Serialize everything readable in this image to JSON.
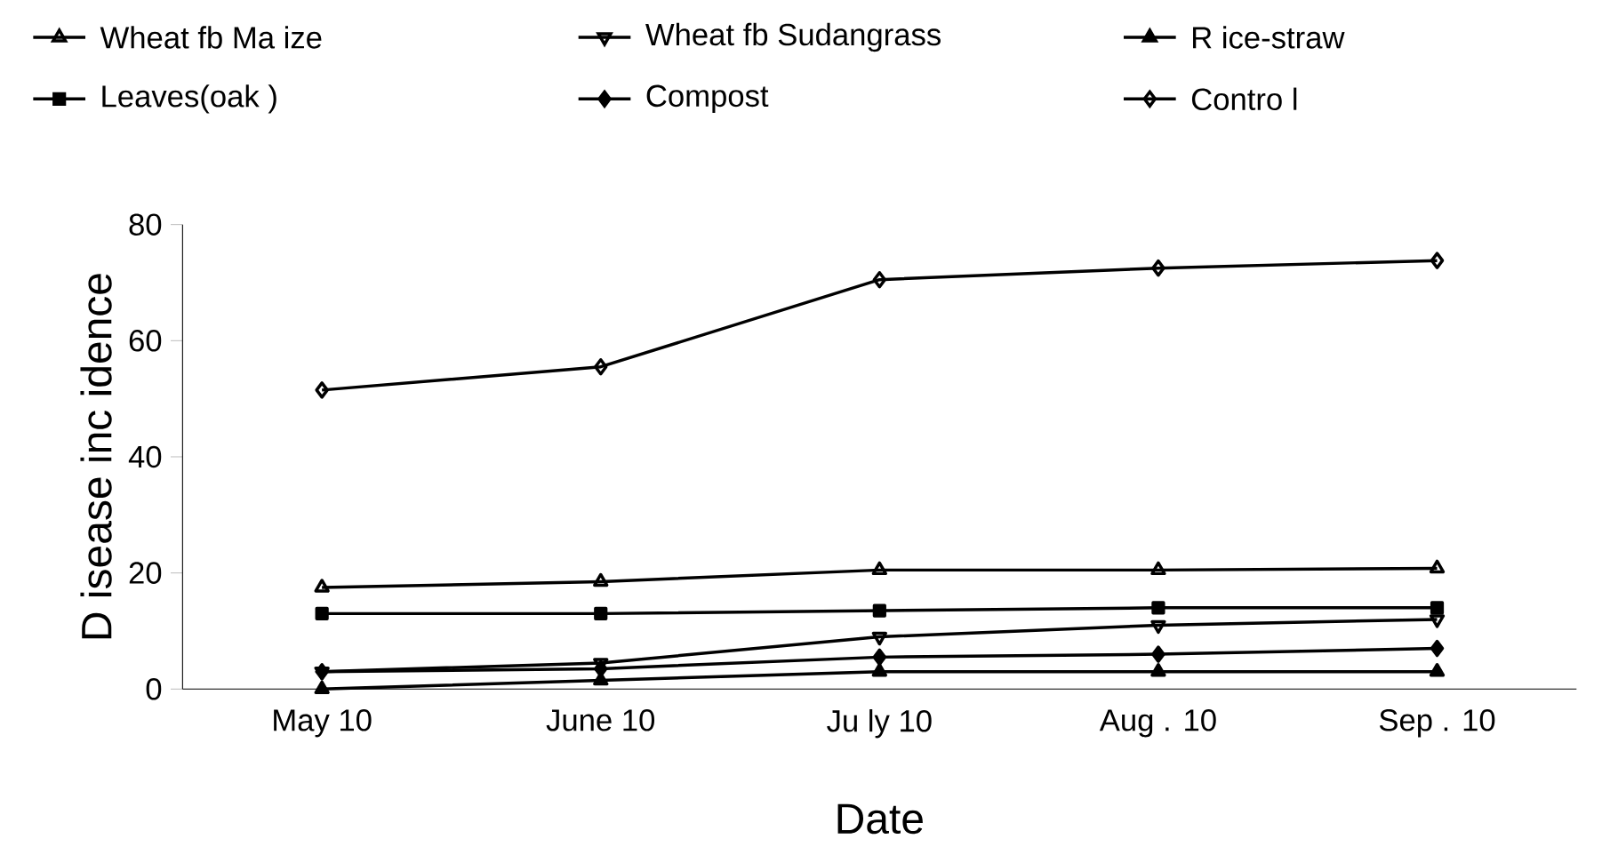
{
  "chart_data": {
    "type": "line",
    "xlabel": "Date",
    "ylabel": "D isease  inc idence",
    "categories": [
      "May  10",
      "June  10",
      "Ju ly  10",
      "Aug . 10",
      "Sep . 10"
    ],
    "series": [
      {
        "name": "Wheat  fb  Ma ize",
        "color": "#000000",
        "marker": "triangle",
        "values": [
          17.5,
          18.5,
          20.5,
          20.5,
          20.8
        ]
      },
      {
        "name": "Wheat  fb  Sudangrass",
        "color": "#000000",
        "marker": "triangle",
        "values": [
          3,
          4.5,
          9,
          11,
          12
        ]
      },
      {
        "name": "R ice-straw",
        "color": "#000000",
        "marker": "triangle",
        "values": [
          0,
          1.5,
          3,
          3,
          3
        ]
      },
      {
        "name": "Leaves(oak )",
        "color": "#000000",
        "marker": "square",
        "values": [
          13,
          13,
          13.5,
          14,
          14
        ]
      },
      {
        "name": "Compost",
        "color": "#000000",
        "marker": "diamond",
        "values": [
          3,
          3.5,
          5.5,
          6,
          7
        ]
      },
      {
        "name": "Contro l",
        "color": "#000000",
        "marker": "diamond",
        "values": [
          51.5,
          55.5,
          70.5,
          72.5,
          73.8
        ]
      }
    ],
    "ylim": [
      0,
      80
    ],
    "yticks": [
      0,
      20,
      40,
      60,
      80
    ],
    "grid": false,
    "legend": "top",
    "line_style": "solid"
  }
}
